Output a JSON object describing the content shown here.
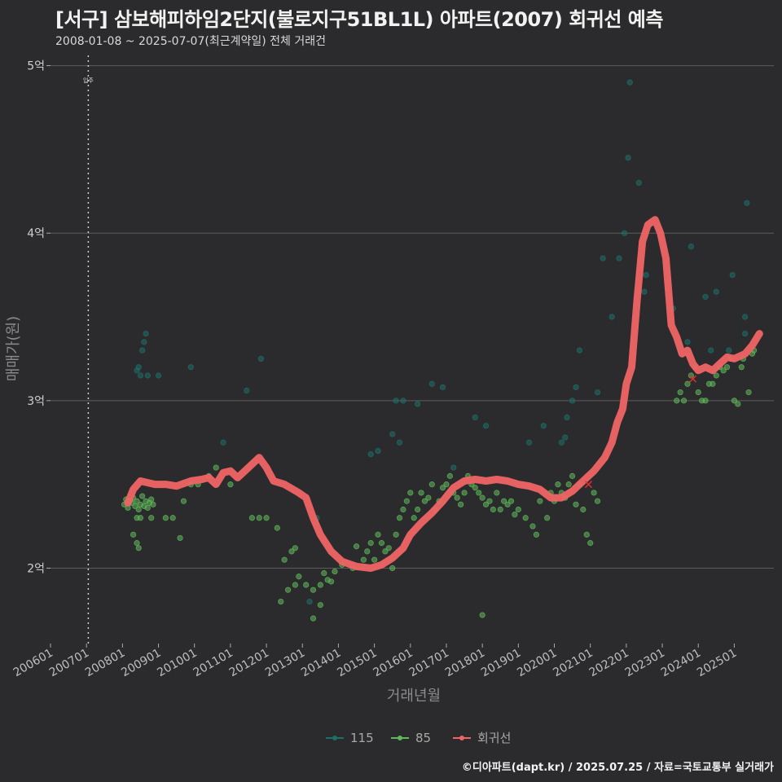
{
  "header": {
    "title": "[서구] 삼보해피하임2단지(불로지구51BL1L) 아파트(2007) 회귀선 예측",
    "subtitle": "2008-01-08 ~ 2025-07-07(최근계약일) 전체 거래건"
  },
  "caption": "©디아파트(dapt.kr) / 2025.07.25 / 자료=국토교통부 실거래가",
  "colors": {
    "s115": "#1e6f6a",
    "s85": "#5fb85a",
    "regression": "#f06464",
    "background": "#2b2b2d",
    "grid": "#5c5c5c"
  },
  "chart_data": {
    "type": "scatter",
    "xlabel": "거래년월",
    "ylabel": "매매가(원)",
    "xlim": [
      2006.0,
      2026.1
    ],
    "ylim": [
      1.55,
      5.1
    ],
    "y_ticks": [
      {
        "value": 2,
        "label": "2억"
      },
      {
        "value": 3,
        "label": "3억"
      },
      {
        "value": 4,
        "label": "4억"
      },
      {
        "value": 5,
        "label": "5억"
      }
    ],
    "x_ticks": [
      "200601",
      "200701",
      "200801",
      "200901",
      "201001",
      "201101",
      "201201",
      "201301",
      "201401",
      "201501",
      "201601",
      "201701",
      "201801",
      "201901",
      "202001",
      "202101",
      "202201",
      "202301",
      "202401",
      "202501"
    ],
    "annotation": {
      "label": "입주",
      "x": 2007.05
    },
    "legend": [
      "115",
      "85",
      "회귀선"
    ],
    "series": [
      {
        "name": "115",
        "points": [
          [
            2008.4,
            3.18
          ],
          [
            2008.45,
            3.2
          ],
          [
            2008.5,
            3.15
          ],
          [
            2008.55,
            3.3
          ],
          [
            2008.6,
            3.35
          ],
          [
            2008.65,
            3.4
          ],
          [
            2008.7,
            3.15
          ],
          [
            2009.0,
            3.15
          ],
          [
            2009.9,
            3.2
          ],
          [
            2010.8,
            2.75
          ],
          [
            2011.45,
            3.06
          ],
          [
            2011.85,
            3.25
          ],
          [
            2013.4,
            2.3
          ],
          [
            2013.2,
            1.8
          ],
          [
            2014.9,
            2.68
          ],
          [
            2015.1,
            2.7
          ],
          [
            2015.5,
            2.8
          ],
          [
            2015.7,
            2.75
          ],
          [
            2015.6,
            3.0
          ],
          [
            2015.8,
            3.0
          ],
          [
            2016.2,
            2.98
          ],
          [
            2016.6,
            3.1
          ],
          [
            2016.9,
            3.08
          ],
          [
            2017.2,
            2.6
          ],
          [
            2017.8,
            2.9
          ],
          [
            2018.1,
            2.85
          ],
          [
            2019.3,
            2.75
          ],
          [
            2019.7,
            2.85
          ],
          [
            2020.2,
            2.75
          ],
          [
            2020.3,
            2.78
          ],
          [
            2020.35,
            2.9
          ],
          [
            2020.5,
            3.0
          ],
          [
            2020.6,
            3.08
          ],
          [
            2020.7,
            3.3
          ],
          [
            2021.2,
            3.05
          ],
          [
            2021.35,
            3.85
          ],
          [
            2021.6,
            3.5
          ],
          [
            2021.8,
            3.85
          ],
          [
            2021.95,
            4.0
          ],
          [
            2022.05,
            4.45
          ],
          [
            2022.1,
            4.9
          ],
          [
            2022.35,
            4.3
          ],
          [
            2022.5,
            3.65
          ],
          [
            2022.55,
            3.75
          ],
          [
            2023.3,
            3.55
          ],
          [
            2023.7,
            3.35
          ],
          [
            2023.8,
            3.92
          ],
          [
            2024.2,
            3.62
          ],
          [
            2024.35,
            3.3
          ],
          [
            2024.5,
            3.65
          ],
          [
            2024.85,
            3.3
          ],
          [
            2024.95,
            3.75
          ],
          [
            2025.3,
            3.4
          ],
          [
            2025.35,
            4.18
          ],
          [
            2025.3,
            3.5
          ]
        ]
      },
      {
        "name": "85",
        "points": [
          [
            2008.05,
            2.38
          ],
          [
            2008.1,
            2.41
          ],
          [
            2008.15,
            2.36
          ],
          [
            2008.2,
            2.4
          ],
          [
            2008.25,
            2.39
          ],
          [
            2008.3,
            2.42
          ],
          [
            2008.35,
            2.37
          ],
          [
            2008.4,
            2.4
          ],
          [
            2008.45,
            2.35
          ],
          [
            2008.5,
            2.38
          ],
          [
            2008.55,
            2.43
          ],
          [
            2008.6,
            2.37
          ],
          [
            2008.65,
            2.4
          ],
          [
            2008.7,
            2.36
          ],
          [
            2008.75,
            2.39
          ],
          [
            2008.8,
            2.41
          ],
          [
            2008.85,
            2.38
          ],
          [
            2008.3,
            2.2
          ],
          [
            2008.4,
            2.15
          ],
          [
            2008.45,
            2.12
          ],
          [
            2008.4,
            2.3
          ],
          [
            2008.5,
            2.3
          ],
          [
            2008.8,
            2.3
          ],
          [
            2009.2,
            2.3
          ],
          [
            2009.4,
            2.3
          ],
          [
            2009.6,
            2.18
          ],
          [
            2009.7,
            2.4
          ],
          [
            2009.9,
            2.5
          ],
          [
            2010.1,
            2.5
          ],
          [
            2010.4,
            2.55
          ],
          [
            2010.6,
            2.6
          ],
          [
            2011.0,
            2.5
          ],
          [
            2011.6,
            2.3
          ],
          [
            2011.8,
            2.3
          ],
          [
            2012.0,
            2.3
          ],
          [
            2012.3,
            2.24
          ],
          [
            2012.5,
            2.05
          ],
          [
            2012.4,
            1.8
          ],
          [
            2012.7,
            2.1
          ],
          [
            2012.8,
            2.12
          ],
          [
            2012.6,
            1.87
          ],
          [
            2012.8,
            1.9
          ],
          [
            2012.9,
            1.95
          ],
          [
            2013.1,
            1.9
          ],
          [
            2013.3,
            1.87
          ],
          [
            2013.5,
            1.9
          ],
          [
            2013.6,
            1.97
          ],
          [
            2013.7,
            1.93
          ],
          [
            2013.8,
            1.92
          ],
          [
            2013.3,
            1.7
          ],
          [
            2013.5,
            1.78
          ],
          [
            2013.9,
            1.98
          ],
          [
            2014.1,
            2.02
          ],
          [
            2014.4,
            2.0
          ],
          [
            2014.5,
            2.13
          ],
          [
            2014.7,
            2.05
          ],
          [
            2014.8,
            2.1
          ],
          [
            2014.9,
            2.15
          ],
          [
            2015.0,
            2.05
          ],
          [
            2015.1,
            2.2
          ],
          [
            2015.2,
            2.15
          ],
          [
            2015.3,
            2.1
          ],
          [
            2015.4,
            2.12
          ],
          [
            2015.5,
            2.0
          ],
          [
            2015.6,
            2.2
          ],
          [
            2015.7,
            2.3
          ],
          [
            2015.8,
            2.35
          ],
          [
            2015.9,
            2.4
          ],
          [
            2016.0,
            2.45
          ],
          [
            2016.1,
            2.3
          ],
          [
            2016.2,
            2.35
          ],
          [
            2016.3,
            2.45
          ],
          [
            2016.4,
            2.4
          ],
          [
            2016.5,
            2.42
          ],
          [
            2016.6,
            2.5
          ],
          [
            2016.7,
            2.35
          ],
          [
            2016.8,
            2.4
          ],
          [
            2016.9,
            2.48
          ],
          [
            2017.0,
            2.5
          ],
          [
            2017.1,
            2.55
          ],
          [
            2017.2,
            2.45
          ],
          [
            2017.3,
            2.42
          ],
          [
            2017.4,
            2.38
          ],
          [
            2017.5,
            2.45
          ],
          [
            2017.6,
            2.55
          ],
          [
            2017.7,
            2.5
          ],
          [
            2017.8,
            2.48
          ],
          [
            2017.9,
            2.45
          ],
          [
            2018.0,
            2.42
          ],
          [
            2018.1,
            2.38
          ],
          [
            2018.2,
            2.4
          ],
          [
            2018.0,
            1.72
          ],
          [
            2018.3,
            2.35
          ],
          [
            2018.4,
            2.45
          ],
          [
            2018.5,
            2.35
          ],
          [
            2018.6,
            2.4
          ],
          [
            2018.7,
            2.38
          ],
          [
            2018.8,
            2.4
          ],
          [
            2018.9,
            2.32
          ],
          [
            2019.0,
            2.35
          ],
          [
            2019.2,
            2.3
          ],
          [
            2019.4,
            2.25
          ],
          [
            2019.5,
            2.2
          ],
          [
            2019.6,
            2.4
          ],
          [
            2019.8,
            2.3
          ],
          [
            2019.9,
            2.45
          ],
          [
            2020.0,
            2.4
          ],
          [
            2020.1,
            2.5
          ],
          [
            2020.2,
            2.45
          ],
          [
            2020.3,
            2.42
          ],
          [
            2020.4,
            2.5
          ],
          [
            2020.5,
            2.55
          ],
          [
            2020.6,
            2.38
          ],
          [
            2020.7,
            2.5
          ],
          [
            2020.8,
            2.35
          ],
          [
            2020.9,
            2.2
          ],
          [
            2021.0,
            2.15
          ],
          [
            2021.1,
            2.45
          ],
          [
            2021.2,
            2.4
          ],
          [
            2023.4,
            3.0
          ],
          [
            2023.5,
            3.05
          ],
          [
            2023.6,
            3.0
          ],
          [
            2023.7,
            3.1
          ],
          [
            2023.8,
            3.15
          ],
          [
            2023.9,
            3.2
          ],
          [
            2024.0,
            3.05
          ],
          [
            2024.1,
            3.0
          ],
          [
            2024.2,
            3.0
          ],
          [
            2024.3,
            3.1
          ],
          [
            2024.4,
            3.1
          ],
          [
            2024.5,
            3.15
          ],
          [
            2024.6,
            3.2
          ],
          [
            2024.7,
            3.18
          ],
          [
            2024.8,
            3.2
          ],
          [
            2024.9,
            3.25
          ],
          [
            2025.0,
            3.0
          ],
          [
            2025.1,
            2.98
          ],
          [
            2025.2,
            3.2
          ],
          [
            2025.25,
            3.25
          ],
          [
            2025.4,
            3.05
          ],
          [
            2025.5,
            3.28
          ],
          [
            2025.55,
            3.3
          ]
        ]
      },
      {
        "name": "회귀선",
        "points": [
          [
            2008.15,
            2.39
          ],
          [
            2008.3,
            2.47
          ],
          [
            2008.5,
            2.52
          ],
          [
            2008.9,
            2.5
          ],
          [
            2009.2,
            2.5
          ],
          [
            2009.5,
            2.49
          ],
          [
            2009.9,
            2.52
          ],
          [
            2010.2,
            2.53
          ],
          [
            2010.4,
            2.54
          ],
          [
            2010.6,
            2.5
          ],
          [
            2010.8,
            2.57
          ],
          [
            2011.0,
            2.58
          ],
          [
            2011.2,
            2.54
          ],
          [
            2011.5,
            2.6
          ],
          [
            2011.8,
            2.66
          ],
          [
            2012.0,
            2.6
          ],
          [
            2012.2,
            2.52
          ],
          [
            2012.5,
            2.5
          ],
          [
            2012.9,
            2.45
          ],
          [
            2013.1,
            2.42
          ],
          [
            2013.3,
            2.3
          ],
          [
            2013.5,
            2.2
          ],
          [
            2013.8,
            2.1
          ],
          [
            2014.1,
            2.04
          ],
          [
            2014.5,
            2.01
          ],
          [
            2014.9,
            2.0
          ],
          [
            2015.2,
            2.02
          ],
          [
            2015.5,
            2.06
          ],
          [
            2015.8,
            2.12
          ],
          [
            2016.0,
            2.2
          ],
          [
            2016.3,
            2.27
          ],
          [
            2016.6,
            2.33
          ],
          [
            2016.9,
            2.4
          ],
          [
            2017.2,
            2.48
          ],
          [
            2017.5,
            2.52
          ],
          [
            2017.8,
            2.53
          ],
          [
            2018.1,
            2.52
          ],
          [
            2018.4,
            2.53
          ],
          [
            2018.7,
            2.52
          ],
          [
            2019.0,
            2.5
          ],
          [
            2019.3,
            2.49
          ],
          [
            2019.6,
            2.47
          ],
          [
            2019.9,
            2.42
          ],
          [
            2020.2,
            2.42
          ],
          [
            2020.5,
            2.46
          ],
          [
            2020.8,
            2.52
          ],
          [
            2021.1,
            2.58
          ],
          [
            2021.4,
            2.66
          ],
          [
            2021.6,
            2.75
          ],
          [
            2021.75,
            2.87
          ],
          [
            2021.9,
            2.95
          ],
          [
            2022.0,
            3.1
          ],
          [
            2022.15,
            3.2
          ],
          [
            2022.3,
            3.6
          ],
          [
            2022.45,
            3.95
          ],
          [
            2022.6,
            4.05
          ],
          [
            2022.8,
            4.08
          ],
          [
            2022.95,
            4.0
          ],
          [
            2023.1,
            3.85
          ],
          [
            2023.25,
            3.45
          ],
          [
            2023.4,
            3.38
          ],
          [
            2023.55,
            3.28
          ],
          [
            2023.7,
            3.3
          ],
          [
            2023.85,
            3.22
          ],
          [
            2024.0,
            3.18
          ],
          [
            2024.2,
            3.2
          ],
          [
            2024.4,
            3.18
          ],
          [
            2024.6,
            3.22
          ],
          [
            2024.8,
            3.26
          ],
          [
            2025.0,
            3.25
          ],
          [
            2025.3,
            3.28
          ],
          [
            2025.5,
            3.33
          ],
          [
            2025.7,
            3.4
          ]
        ]
      }
    ]
  }
}
